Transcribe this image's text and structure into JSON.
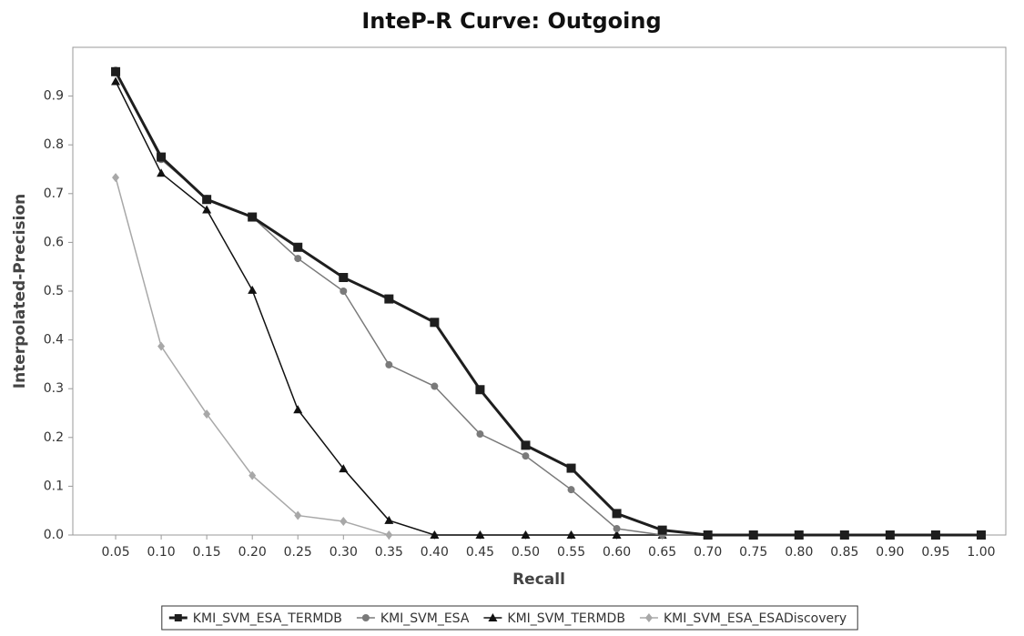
{
  "chart_data": {
    "type": "line",
    "title": "InteP-R Curve: Outgoing",
    "xlabel": "Recall",
    "ylabel": "Interpolated-Precision",
    "x": [
      0.05,
      0.1,
      0.15,
      0.2,
      0.25,
      0.3,
      0.35,
      0.4,
      0.45,
      0.5,
      0.55,
      0.6,
      0.65,
      0.7,
      0.75,
      0.8,
      0.85,
      0.9,
      0.95,
      1.0
    ],
    "series": [
      {
        "name": "KMI_SVM_ESA_TERMDB",
        "color": "#1e1e1e",
        "marker": "square",
        "values": [
          0.95,
          0.775,
          0.688,
          0.652,
          0.59,
          0.528,
          0.484,
          0.436,
          0.298,
          0.184,
          0.137,
          0.044,
          0.01,
          0,
          0,
          0,
          0,
          0,
          0,
          0
        ]
      },
      {
        "name": "KMI_SVM_ESA",
        "color": "#7a7a7a",
        "marker": "circle",
        "values": [
          0.953,
          0.77,
          0.69,
          0.652,
          0.567,
          0.5,
          0.349,
          0.305,
          0.207,
          0.162,
          0.093,
          0.013,
          0,
          0,
          0,
          0,
          0,
          0,
          0,
          0
        ]
      },
      {
        "name": "KMI_SVM_TERMDB",
        "color": "#111111",
        "marker": "triangle",
        "values": [
          0.93,
          0.742,
          0.667,
          0.502,
          0.257,
          0.136,
          0.03,
          0,
          0,
          0,
          0,
          0,
          0,
          0,
          0,
          0,
          0,
          0,
          0,
          0
        ]
      },
      {
        "name": "KMI_SVM_ESA_ESADiscovery",
        "color": "#a8a8a8",
        "marker": "diamond",
        "values": [
          0.733,
          0.387,
          0.248,
          0.122,
          0.04,
          0.028,
          0,
          0,
          0,
          0,
          0,
          0,
          0,
          0,
          0,
          0,
          0,
          0,
          0,
          0
        ]
      }
    ],
    "xlim": [
      0.003,
      1.027
    ],
    "ylim": [
      0,
      1.0
    ],
    "xticks": [
      0.05,
      {
        "value": 0.1,
        "label": "0.10"
      },
      0.15,
      {
        "value": 0.2,
        "label": "0.20"
      },
      0.25,
      {
        "value": 0.3,
        "label": "0.30"
      },
      0.35,
      {
        "value": 0.4,
        "label": "0.40"
      },
      0.45,
      {
        "value": 0.5,
        "label": "0.50"
      },
      0.55,
      {
        "value": 0.6,
        "label": "0.60"
      },
      0.65,
      {
        "value": 0.7,
        "label": "0.70"
      },
      0.75,
      {
        "value": 0.8,
        "label": "0.80"
      },
      0.85,
      {
        "value": 0.9,
        "label": "0.90"
      },
      0.95,
      {
        "value": 1.0,
        "label": "1.00"
      }
    ],
    "yticks": [
      {
        "value": 0,
        "label": "0.0"
      },
      0.1,
      0.2,
      0.3,
      0.4,
      0.5,
      0.6,
      0.7,
      0.8,
      0.9
    ],
    "legend": "bottom"
  }
}
